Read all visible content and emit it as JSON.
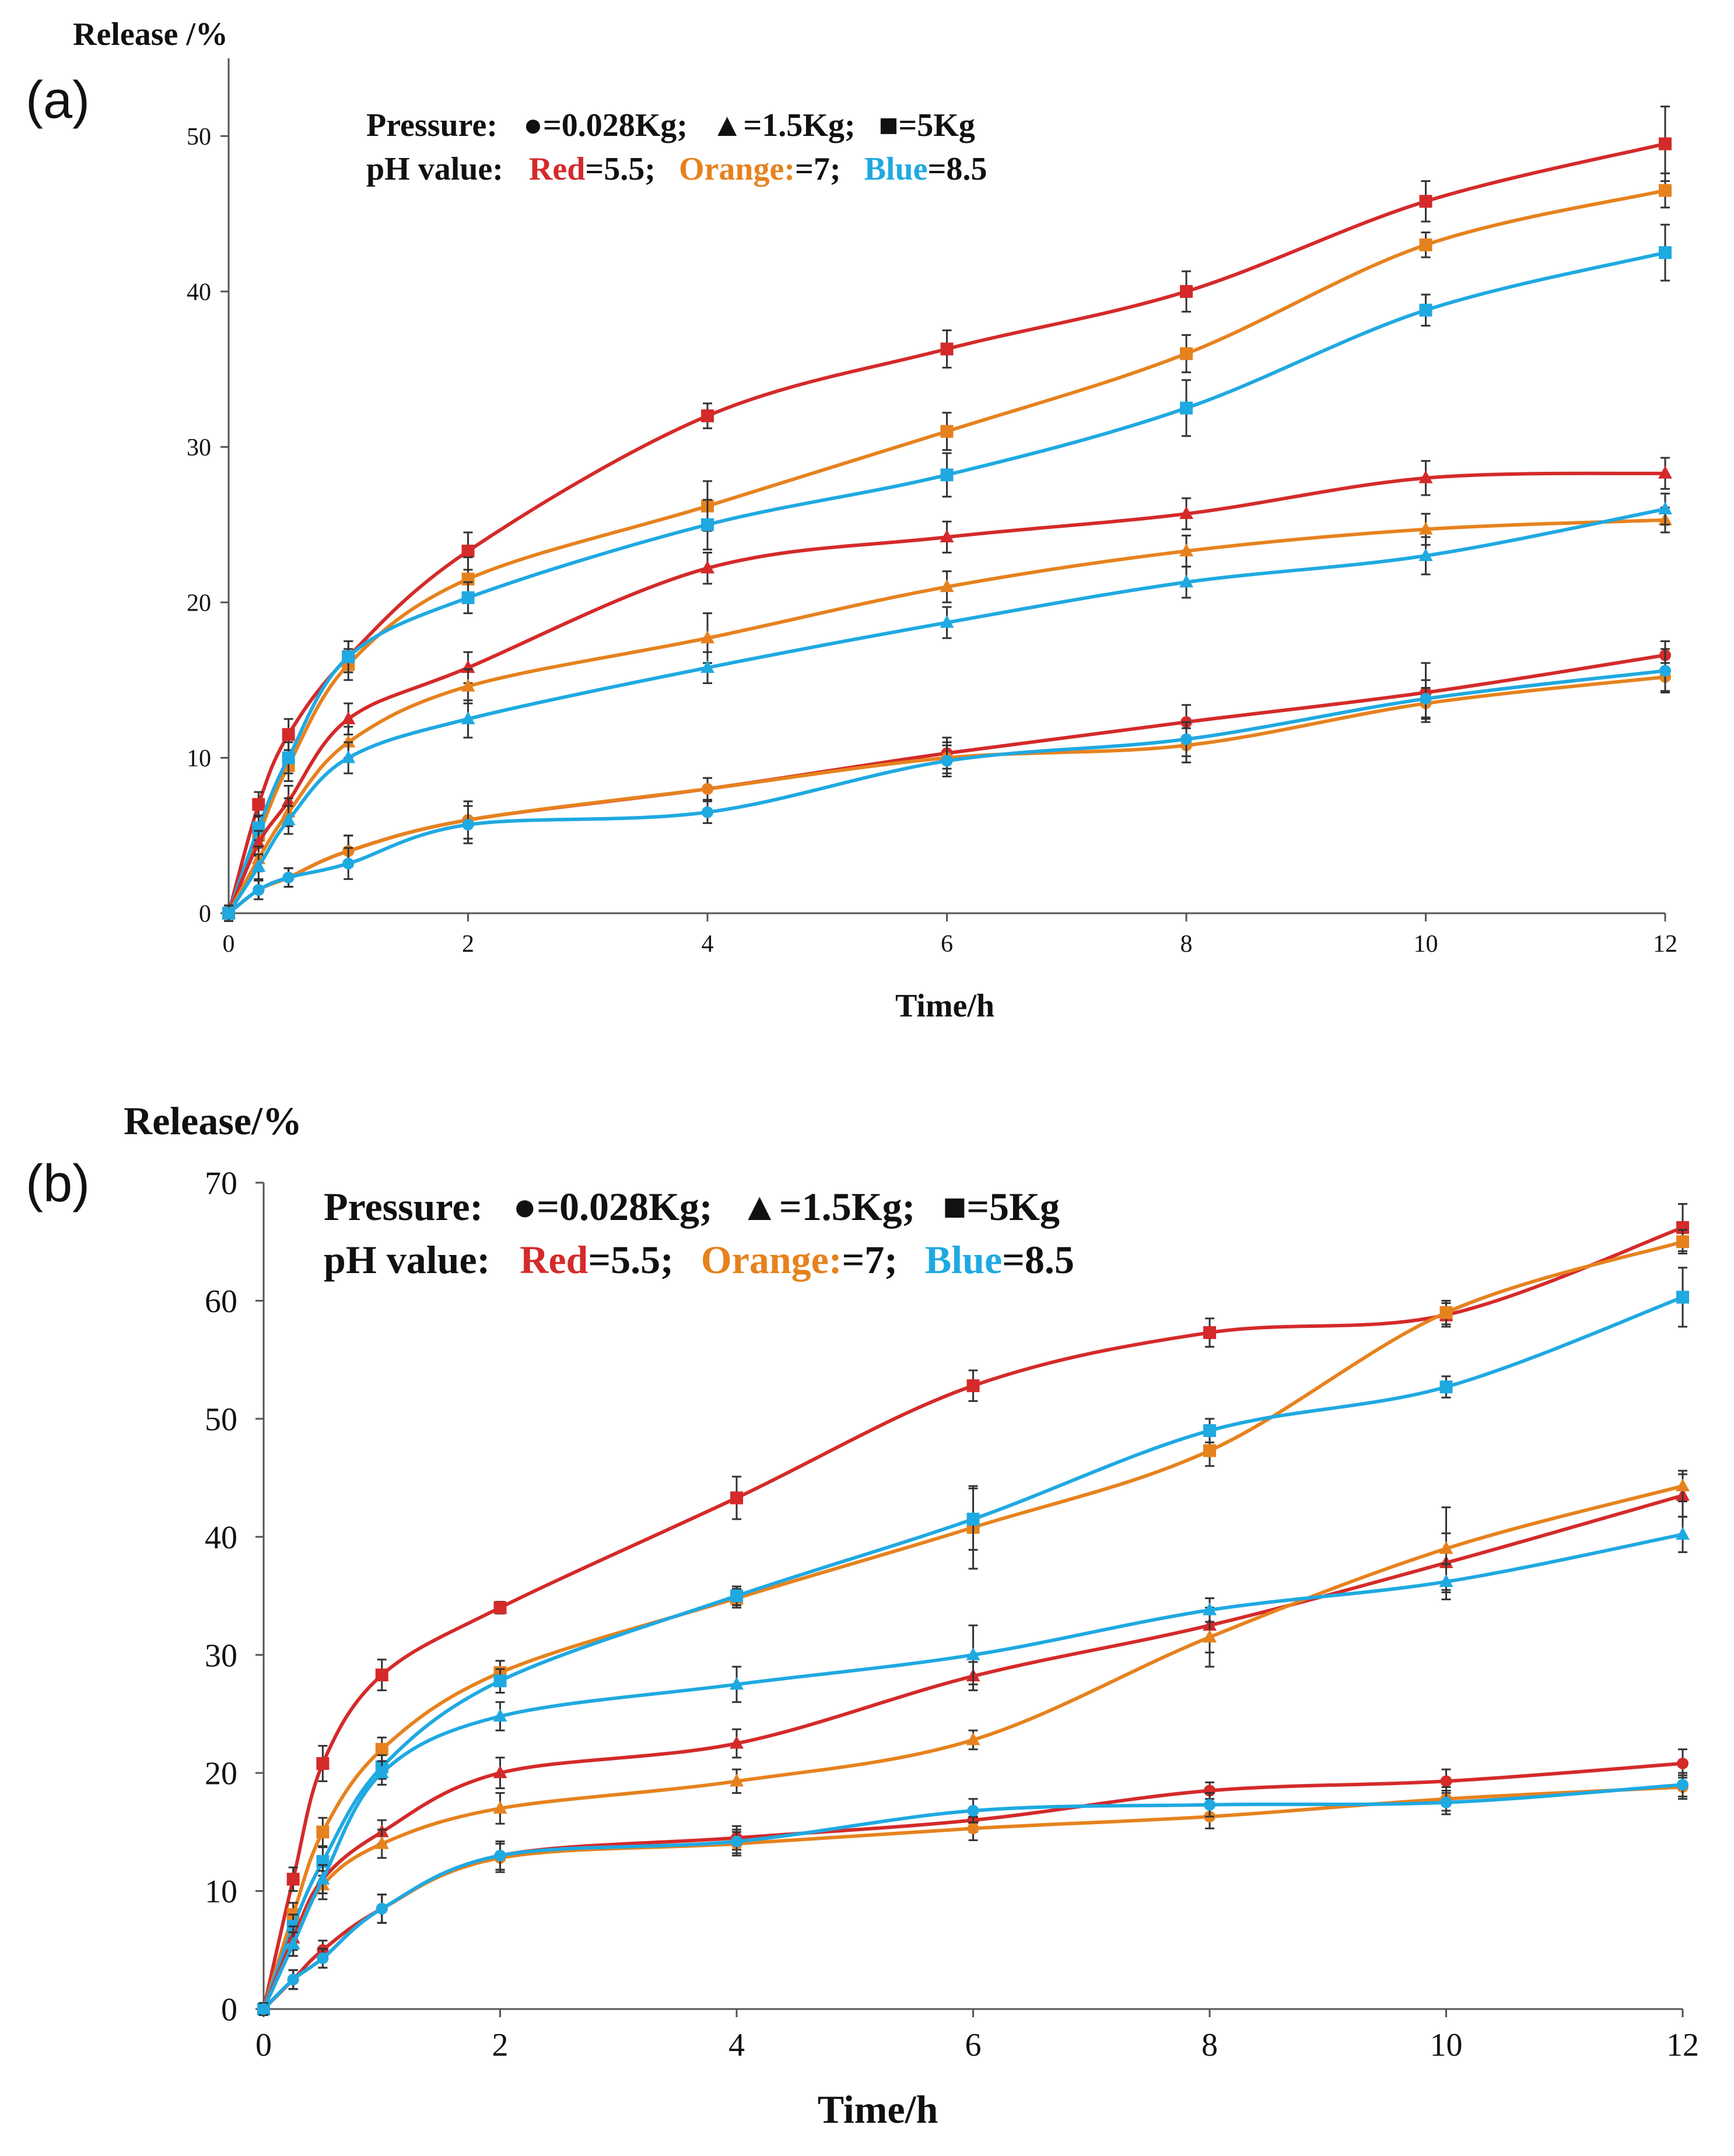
{
  "colors": {
    "red": "#d42a2a",
    "orange": "#e6821e",
    "blue": "#1fa9e1",
    "axis": "#555555",
    "text": "#111111"
  },
  "chart_data": [
    {
      "type": "line",
      "panel_label": "(a)",
      "ylabel": "Release /%",
      "xlabel": "Time/h",
      "xlim": [
        0,
        12
      ],
      "ylim": [
        0,
        55
      ],
      "x_ticks": [
        0,
        2,
        4,
        6,
        8,
        10,
        12
      ],
      "y_ticks": [
        0,
        10,
        20,
        30,
        40,
        50
      ],
      "legend": {
        "pressure_prefix": "Pressure:",
        "pressure_items": [
          {
            "marker": "circle",
            "text": "=0.028Kg;"
          },
          {
            "marker": "triangle",
            "text": "=1.5Kg;"
          },
          {
            "marker": "square",
            "text": "=5Kg"
          }
        ],
        "ph_prefix": "pH value:",
        "ph_items": [
          {
            "text": "Red",
            "color": "red",
            "suffix": "=5.5;"
          },
          {
            "text": "Orange:",
            "color": "orange",
            "suffix": "=7;"
          },
          {
            "text": "Blue",
            "color": "blue",
            "suffix": "=8.5"
          }
        ]
      },
      "x": [
        0,
        0.25,
        0.5,
        1,
        2,
        4,
        6,
        8,
        10,
        12
      ],
      "series": [
        {
          "color": "red",
          "values": [
            0,
            7,
            11.5,
            16.5,
            23.3,
            32,
            36.3,
            40,
            45.8,
            49.5
          ],
          "errors": [
            0.5,
            0.8,
            1,
            1,
            1.2,
            0.8,
            1.2,
            1.3,
            1.3,
            2.4
          ]
        },
        {
          "color": "orange",
          "values": [
            0,
            5,
            9.5,
            16,
            21.5,
            26.2,
            31,
            36,
            43,
            46.5
          ],
          "errors": [
            0.5,
            0.8,
            1,
            1,
            1.4,
            1.6,
            1.2,
            1.2,
            0.8,
            1.1
          ]
        },
        {
          "color": "blue",
          "values": [
            0,
            5.5,
            10,
            16.5,
            20.3,
            25,
            28.2,
            32.5,
            38.8,
            42.5
          ],
          "errors": [
            0.5,
            0.8,
            1,
            1,
            1,
            1.6,
            1.4,
            1.8,
            1,
            1.8
          ]
        },
        {
          "color": "red",
          "values": [
            0,
            4.5,
            7.2,
            12.5,
            15.8,
            22.2,
            24.2,
            25.7,
            28,
            28.3
          ],
          "errors": [
            0.5,
            0.8,
            1,
            1,
            1,
            1,
            1,
            1,
            1.1,
            1
          ]
        },
        {
          "color": "orange",
          "values": [
            0,
            3.5,
            6.5,
            11,
            14.6,
            17.7,
            21,
            23.3,
            24.7,
            25.3
          ],
          "errors": [
            0.5,
            0.8,
            0.9,
            1,
            1.1,
            1.6,
            1,
            1,
            1,
            0.8
          ]
        },
        {
          "color": "blue",
          "values": [
            0,
            3,
            6,
            10,
            12.5,
            15.8,
            18.7,
            21.3,
            23,
            26
          ],
          "errors": [
            0.5,
            0.8,
            0.9,
            1,
            1.2,
            1,
            1,
            1,
            1.2,
            1
          ]
        },
        {
          "color": "red",
          "values": [
            0,
            1.5,
            2.3,
            4,
            6,
            8,
            10.3,
            12.3,
            14.2,
            16.6
          ],
          "errors": [
            0.5,
            0.6,
            0.6,
            1,
            1.2,
            0.7,
            1,
            1.1,
            1.9,
            0.9
          ]
        },
        {
          "color": "orange",
          "values": [
            0,
            1.5,
            2.3,
            4,
            6,
            8,
            10,
            10.8,
            13.5,
            15.2
          ],
          "errors": [
            0.5,
            0.6,
            0.6,
            1,
            1.2,
            0.7,
            1,
            1.1,
            1,
            0.9
          ]
        },
        {
          "color": "blue",
          "values": [
            0,
            1.5,
            2.3,
            3.2,
            5.7,
            6.5,
            9.8,
            11.2,
            13.8,
            15.6
          ],
          "errors": [
            0.5,
            0.6,
            0.6,
            1,
            1.2,
            0.7,
            1,
            1.1,
            1.2,
            1.4
          ]
        }
      ]
    },
    {
      "type": "line",
      "panel_label": "(b)",
      "ylabel": "Release/%",
      "xlabel": "Time/h",
      "xlim": [
        0,
        12
      ],
      "ylim": [
        0,
        70
      ],
      "x_ticks": [
        0,
        2,
        4,
        6,
        8,
        10,
        12
      ],
      "y_ticks": [
        0,
        10,
        20,
        30,
        40,
        50,
        60,
        70
      ],
      "legend": {
        "pressure_prefix": "Pressure:",
        "pressure_items": [
          {
            "marker": "circle",
            "text": "=0.028Kg;"
          },
          {
            "marker": "triangle",
            "text": "=1.5Kg;"
          },
          {
            "marker": "square",
            "text": "=5Kg"
          }
        ],
        "ph_prefix": "pH value:",
        "ph_items": [
          {
            "text": "Red",
            "color": "red",
            "suffix": "=5.5;"
          },
          {
            "text": "Orange:",
            "color": "orange",
            "suffix": "=7;"
          },
          {
            "text": "Blue",
            "color": "blue",
            "suffix": "=8.5"
          }
        ]
      },
      "x": [
        0,
        0.25,
        0.5,
        1,
        2,
        4,
        6,
        8,
        10,
        12
      ],
      "series": [
        {
          "color": "red",
          "values": [
            0,
            11,
            20.8,
            28.3,
            34,
            43.3,
            52.8,
            57.3,
            58.8,
            66.2
          ],
          "errors": [
            0.5,
            1,
            1.5,
            1.3,
            0.5,
            1.8,
            1.3,
            1.2,
            1,
            2
          ]
        },
        {
          "color": "orange",
          "values": [
            0,
            8,
            15,
            22,
            28.5,
            34.8,
            40.8,
            47.3,
            59,
            65
          ],
          "errors": [
            0.5,
            1,
            1.2,
            1,
            1,
            0.8,
            3.5,
            1.3,
            1,
            1
          ]
        },
        {
          "color": "blue",
          "values": [
            0,
            7,
            12.5,
            20.5,
            27.8,
            35,
            41.5,
            49,
            52.7,
            60.3
          ],
          "errors": [
            0.5,
            1,
            1.2,
            1,
            1,
            0.8,
            2.6,
            1,
            0.9,
            2.5
          ]
        },
        {
          "color": "red",
          "values": [
            0,
            6,
            11,
            15,
            20,
            22.5,
            28.2,
            32.5,
            37.8,
            43.5
          ],
          "errors": [
            0.5,
            1,
            1.2,
            1,
            1.3,
            1.2,
            1.2,
            2.3,
            2.5,
            1.8
          ]
        },
        {
          "color": "orange",
          "values": [
            0,
            5.5,
            10.5,
            14,
            17,
            19.3,
            22.8,
            31.5,
            39,
            44.3
          ],
          "errors": [
            0.5,
            1,
            1.2,
            1.2,
            1.3,
            1,
            0.8,
            2.5,
            3.5,
            1.3
          ]
        },
        {
          "color": "blue",
          "values": [
            0,
            5.5,
            11,
            20,
            24.8,
            27.5,
            30,
            33.8,
            36.2,
            40.2
          ],
          "errors": [
            0.5,
            1,
            1.2,
            1,
            1.2,
            1.5,
            2.5,
            1,
            1.5,
            1.5
          ]
        },
        {
          "color": "red",
          "values": [
            0,
            2.5,
            5,
            8.5,
            13,
            14.5,
            16,
            18.5,
            19.3,
            20.8
          ],
          "errors": [
            0.5,
            0.8,
            0.8,
            1.2,
            1.2,
            1,
            1,
            0.7,
            1,
            1.2
          ]
        },
        {
          "color": "orange",
          "values": [
            0,
            2.5,
            4.3,
            8.5,
            12.8,
            14,
            15.3,
            16.3,
            17.8,
            18.8
          ],
          "errors": [
            0.5,
            0.8,
            0.8,
            1.2,
            1.2,
            1,
            1,
            1,
            1,
            1
          ]
        },
        {
          "color": "blue",
          "values": [
            0,
            2.5,
            4.3,
            8.5,
            13,
            14.2,
            16.8,
            17.3,
            17.5,
            19
          ],
          "errors": [
            0.5,
            0.8,
            0.8,
            1.2,
            1.2,
            1,
            1,
            1,
            1,
            1
          ]
        }
      ]
    }
  ]
}
